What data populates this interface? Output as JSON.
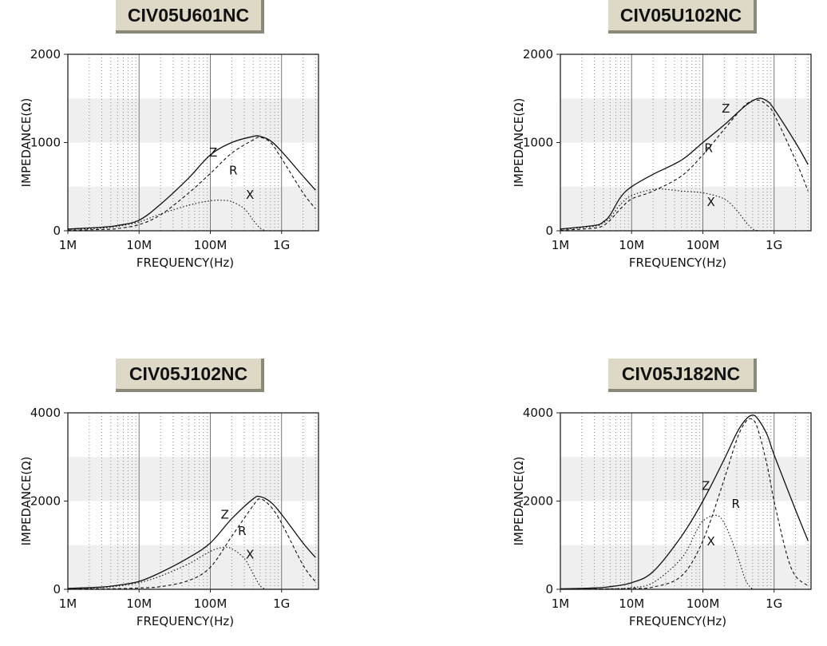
{
  "chart_data": [
    {
      "type": "line",
      "title": "CIV05U601NC",
      "xlabel": "FREQUENCY(Hz)",
      "ylabel": "IMPEDANCE(Ω)",
      "xscale": "log",
      "xlim": [
        1000000,
        3300000000
      ],
      "ylim": [
        0,
        2000
      ],
      "xticks": [
        "1M",
        "10M",
        "100M",
        "1G"
      ],
      "yticks": [
        "0",
        "1000",
        "2000"
      ],
      "series": [
        {
          "name": "Z",
          "x": [
            1000000.0,
            3000000.0,
            5000000.0,
            10000000.0,
            20000000.0,
            50000000.0,
            100000000.0,
            200000000.0,
            400000000.0,
            500000000.0,
            700000000.0,
            1000000000.0,
            2000000000.0,
            3000000000.0
          ],
          "y": [
            20,
            40,
            60,
            120,
            300,
            600,
            860,
            1000,
            1070,
            1070,
            1020,
            900,
            620,
            460
          ]
        },
        {
          "name": "R",
          "x": [
            1000000.0,
            3000000.0,
            5000000.0,
            10000000.0,
            20000000.0,
            50000000.0,
            100000000.0,
            200000000.0,
            400000000.0,
            500000000.0,
            700000000.0,
            1000000000.0,
            2000000000.0,
            3000000000.0
          ],
          "y": [
            5,
            15,
            25,
            70,
            180,
            430,
            650,
            880,
            1030,
            1060,
            1000,
            820,
            430,
            250
          ]
        },
        {
          "name": "X",
          "x": [
            1000000.0,
            3000000.0,
            5000000.0,
            10000000.0,
            20000000.0,
            50000000.0,
            100000000.0,
            150000000.0,
            200000000.0,
            300000000.0,
            400000000.0,
            500000000.0,
            600000000.0
          ],
          "y": [
            15,
            30,
            50,
            100,
            190,
            290,
            340,
            345,
            330,
            250,
            120,
            30,
            0
          ]
        }
      ],
      "labels": [
        {
          "text": "Z",
          "x": 110000000.0,
          "y": 840
        },
        {
          "text": "R",
          "x": 210000000.0,
          "y": 640
        },
        {
          "text": "X",
          "x": 360000000.0,
          "y": 360
        }
      ]
    },
    {
      "type": "line",
      "title": "CIV05U102NC",
      "xlabel": "FREQUENCY(Hz)",
      "ylabel": "IMPEDANCE(Ω)",
      "xscale": "log",
      "xlim": [
        1000000,
        3300000000
      ],
      "ylim": [
        0,
        2000
      ],
      "xticks": [
        "1M",
        "10M",
        "100M",
        "1G"
      ],
      "yticks": [
        "0",
        "1000",
        "2000"
      ],
      "series": [
        {
          "name": "Z",
          "x": [
            1000000.0,
            3000000.0,
            4000000.0,
            5000000.0,
            7000000.0,
            10000000.0,
            20000000.0,
            50000000.0,
            100000000.0,
            200000000.0,
            400000000.0,
            600000000.0,
            800000000.0,
            1000000000.0,
            2000000000.0,
            3000000000.0
          ],
          "y": [
            20,
            60,
            100,
            180,
            380,
            500,
            640,
            800,
            1000,
            1200,
            1420,
            1500,
            1470,
            1380,
            1000,
            750
          ]
        },
        {
          "name": "R",
          "x": [
            1000000.0,
            3000000.0,
            4000000.0,
            5000000.0,
            7000000.0,
            10000000.0,
            20000000.0,
            50000000.0,
            100000000.0,
            200000000.0,
            400000000.0,
            600000000.0,
            800000000.0,
            1000000000.0,
            2000000000.0,
            3000000000.0
          ],
          "y": [
            5,
            30,
            60,
            120,
            250,
            360,
            450,
            620,
            860,
            1150,
            1430,
            1480,
            1420,
            1320,
            800,
            450
          ]
        },
        {
          "name": "X",
          "x": [
            1000000.0,
            3000000.0,
            4000000.0,
            5000000.0,
            7000000.0,
            10000000.0,
            20000000.0,
            30000000.0,
            50000000.0,
            100000000.0,
            200000000.0,
            300000000.0,
            400000000.0,
            500000000.0,
            600000000.0
          ],
          "y": [
            15,
            50,
            90,
            150,
            300,
            400,
            470,
            470,
            450,
            430,
            360,
            230,
            100,
            20,
            0
          ]
        }
      ],
      "labels": [
        {
          "text": "Z",
          "x": 210000000.0,
          "y": 1340
        },
        {
          "text": "R",
          "x": 120000000.0,
          "y": 890
        },
        {
          "text": "X",
          "x": 130000000.0,
          "y": 280
        }
      ]
    },
    {
      "type": "line",
      "title": "CIV05J102NC",
      "xlabel": "FREQUENCY(Hz)",
      "ylabel": "IMPEDANCE(Ω)",
      "xscale": "log",
      "xlim": [
        1000000,
        3300000000
      ],
      "ylim": [
        0,
        4000
      ],
      "xticks": [
        "1M",
        "10M",
        "100M",
        "1G"
      ],
      "yticks": [
        "0",
        "2000",
        "4000"
      ],
      "series": [
        {
          "name": "Z",
          "x": [
            1000000.0,
            3000000.0,
            5000000.0,
            10000000.0,
            20000000.0,
            50000000.0,
            100000000.0,
            200000000.0,
            400000000.0,
            500000000.0,
            700000000.0,
            1000000000.0,
            2000000000.0,
            3000000000.0
          ],
          "y": [
            20,
            50,
            90,
            180,
            380,
            720,
            1050,
            1600,
            2050,
            2100,
            1980,
            1700,
            1050,
            720
          ]
        },
        {
          "name": "R",
          "x": [
            1000000.0,
            3000000.0,
            5000000.0,
            10000000.0,
            20000000.0,
            50000000.0,
            100000000.0,
            200000000.0,
            400000000.0,
            500000000.0,
            700000000.0,
            1000000000.0,
            2000000000.0,
            3000000000.0
          ],
          "y": [
            5,
            10,
            15,
            30,
            60,
            200,
            500,
            1200,
            1900,
            2050,
            1880,
            1500,
            550,
            170
          ]
        },
        {
          "name": "X",
          "x": [
            1000000.0,
            3000000.0,
            5000000.0,
            10000000.0,
            20000000.0,
            50000000.0,
            100000000.0,
            150000000.0,
            200000000.0,
            300000000.0,
            400000000.0,
            500000000.0,
            600000000.0
          ],
          "y": [
            10,
            40,
            70,
            150,
            300,
            580,
            860,
            950,
            920,
            700,
            350,
            80,
            0
          ]
        }
      ],
      "labels": [
        {
          "text": "Z",
          "x": 160000000.0,
          "y": 1600
        },
        {
          "text": "R",
          "x": 280000000.0,
          "y": 1230
        },
        {
          "text": "X",
          "x": 360000000.0,
          "y": 700
        }
      ]
    },
    {
      "type": "line",
      "title": "CIV05J182NC",
      "xlabel": "FREQUENCY(Hz)",
      "ylabel": "IMPEDANCE(Ω)",
      "xscale": "log",
      "xlim": [
        1000000,
        3300000000
      ],
      "ylim": [
        0,
        4000
      ],
      "xticks": [
        "1M",
        "10M",
        "100M",
        "1G"
      ],
      "yticks": [
        "0",
        "2000",
        "4000"
      ],
      "series": [
        {
          "name": "Z",
          "x": [
            1000000.0,
            3000000.0,
            5000000.0,
            10000000.0,
            20000000.0,
            50000000.0,
            100000000.0,
            200000000.0,
            300000000.0,
            400000000.0,
            500000000.0,
            600000000.0,
            800000000.0,
            1000000000.0,
            2000000000.0,
            3000000000.0
          ],
          "y": [
            10,
            30,
            60,
            150,
            400,
            1200,
            2000,
            2950,
            3550,
            3850,
            3950,
            3850,
            3500,
            3050,
            1800,
            1100
          ]
        },
        {
          "name": "R",
          "x": [
            1000000.0,
            5000000.0,
            10000000.0,
            20000000.0,
            50000000.0,
            100000000.0,
            200000000.0,
            300000000.0,
            400000000.0,
            500000000.0,
            600000000.0,
            800000000.0,
            1000000000.0,
            1500000000.0,
            2000000000.0,
            3000000000.0
          ],
          "y": [
            0,
            10,
            20,
            50,
            300,
            1100,
            2500,
            3400,
            3800,
            3850,
            3600,
            2800,
            2000,
            800,
            300,
            80
          ]
        },
        {
          "name": "X",
          "x": [
            1000000.0,
            5000000.0,
            10000000.0,
            20000000.0,
            50000000.0,
            80000000.0,
            100000000.0,
            150000000.0,
            200000000.0,
            300000000.0,
            400000000.0,
            500000000.0
          ],
          "y": [
            0,
            10,
            40,
            150,
            700,
            1300,
            1550,
            1680,
            1500,
            800,
            200,
            0
          ]
        }
      ],
      "labels": [
        {
          "text": "Z",
          "x": 110000000.0,
          "y": 2250
        },
        {
          "text": "R",
          "x": 290000000.0,
          "y": 1850
        },
        {
          "text": "X",
          "x": 130000000.0,
          "y": 1000
        }
      ]
    }
  ]
}
